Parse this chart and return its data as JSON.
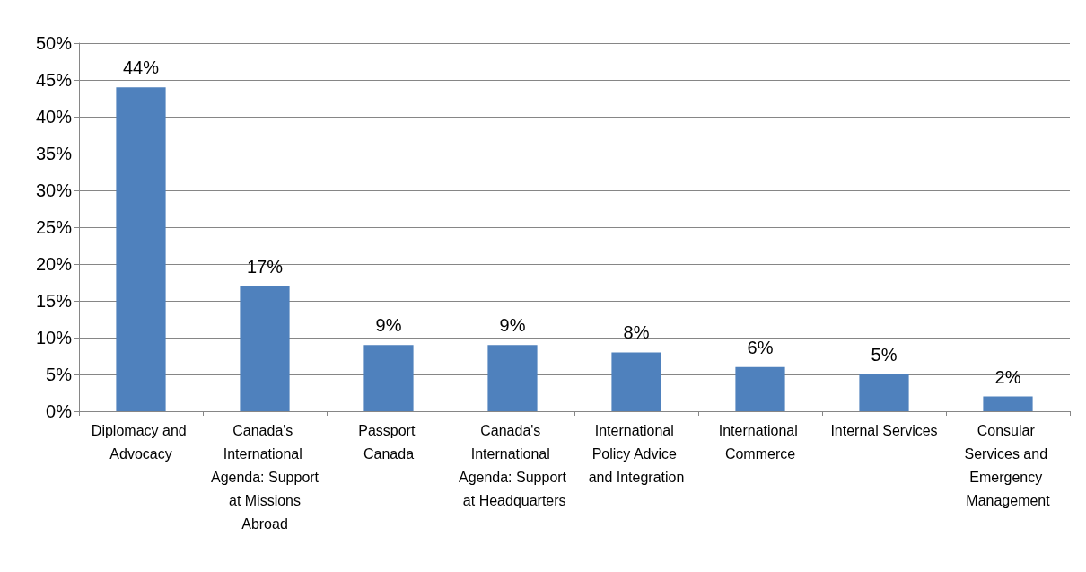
{
  "chart_data": {
    "type": "bar",
    "categories": [
      "Diplomacy and Advocacy",
      "Canada's International Agenda: Support at Missions Abroad",
      "Passport Canada",
      "Canada's International Agenda: Support at Headquarters",
      "International Policy Advice and Integration",
      "International Commerce",
      "Internal Services",
      "Consular Services and Emergency Management"
    ],
    "values": [
      44,
      17,
      9,
      9,
      8,
      6,
      5,
      2
    ],
    "value_labels": [
      "44%",
      "17%",
      "9%",
      "9%",
      "8%",
      "6%",
      "5%",
      "2%"
    ],
    "color": "#4f81bd",
    "ylim": [
      0,
      50
    ],
    "yticks": [
      {
        "value": 0,
        "label": "0%"
      },
      {
        "value": 5,
        "label": "5%"
      },
      {
        "value": 10,
        "label": "10%"
      },
      {
        "value": 15,
        "label": "15%"
      },
      {
        "value": 20,
        "label": "20%"
      },
      {
        "value": 25,
        "label": "25%"
      },
      {
        "value": 30,
        "label": "30%"
      },
      {
        "value": 35,
        "label": "35%"
      },
      {
        "value": 40,
        "label": "40%"
      },
      {
        "value": 45,
        "label": "45%"
      },
      {
        "value": 50,
        "label": "50%"
      }
    ],
    "grid": "y"
  }
}
